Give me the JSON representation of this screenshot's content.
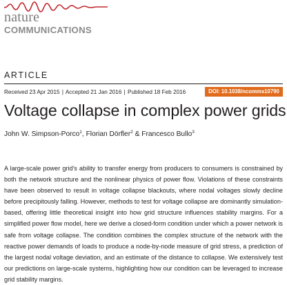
{
  "masthead": {
    "brand_top": "nature",
    "brand_bottom": "COMMUNICATIONS",
    "signal_color": "#c1272d"
  },
  "article": {
    "label": "ARTICLE",
    "received": "Received 23 Apr 2015",
    "accepted": "Accepted 21 Jan 2016",
    "published": "Published 18 Feb 2016",
    "separator": "|",
    "doi": "DOI: 10.1038/ncomms10790",
    "doi_color": "#e06b1c",
    "title": "Voltage collapse in complex power grids",
    "authors": [
      {
        "name": "John W. Simpson-Porco",
        "affil": "1",
        "after": ", "
      },
      {
        "name": "Florian Dörfler",
        "affil": "2",
        "after": " & "
      },
      {
        "name": "Francesco Bullo",
        "affil": "3",
        "after": ""
      }
    ],
    "abstract": "A large-scale power grid's ability to transfer energy from producers to consumers is constrained by both the network structure and the nonlinear physics of power flow. Violations of these constraints have been observed to result in voltage collapse blackouts, where nodal voltages slowly decline before precipitously falling. However, methods to test for voltage collapse are dominantly simulation-based, offering little theoretical insight into how grid structure influences stability margins. For a simplified power flow model, here we derive a closed-form condition under which a power network is safe from voltage collapse. The condition combines the complex structure of the network with the reactive power demands of loads to produce a node-by-node measure of grid stress, a prediction of the largest nodal voltage deviation, and an estimate of the distance to collapse. We extensively test our predictions on large-scale systems, highlighting how our condition can be leveraged to increase grid stability margins."
  }
}
